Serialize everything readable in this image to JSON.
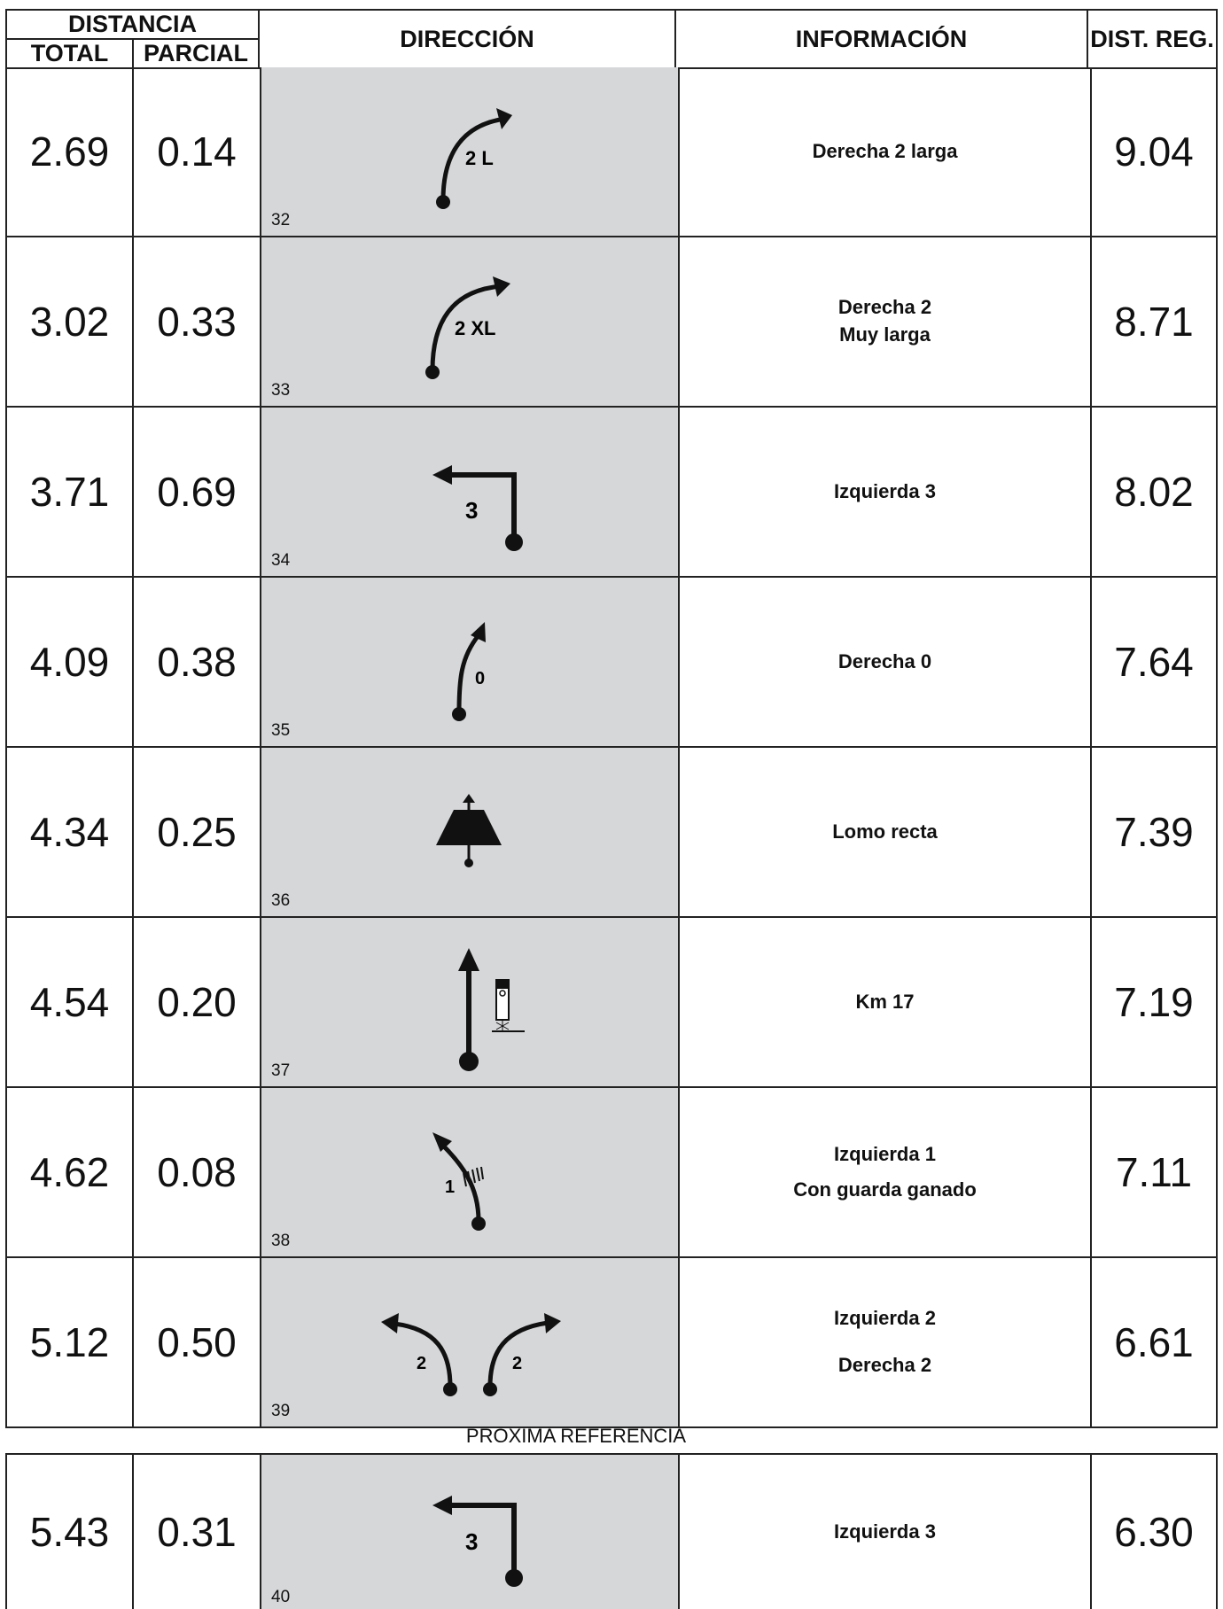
{
  "header": {
    "distancia": "DISTANCIA",
    "total": "TOTAL",
    "parcial": "PARCIAL",
    "direccion": "DIRECCIÓN",
    "informacion": "INFORMACIÓN",
    "dist_reg": "DIST. REG."
  },
  "rows": [
    {
      "total": "2.69",
      "parcial": "0.14",
      "num": "32",
      "info1": "Derecha 2 larga",
      "info2": "",
      "reg": "9.04",
      "label": "2 L"
    },
    {
      "total": "3.02",
      "parcial": "0.33",
      "num": "33",
      "info1": "Derecha 2",
      "info2": "Muy larga",
      "reg": "8.71",
      "label": "2 XL"
    },
    {
      "total": "3.71",
      "parcial": "0.69",
      "num": "34",
      "info1": "Izquierda 3",
      "info2": "",
      "reg": "8.02",
      "label": "3"
    },
    {
      "total": "4.09",
      "parcial": "0.38",
      "num": "35",
      "info1": "Derecha 0",
      "info2": "",
      "reg": "7.64",
      "label": "0"
    },
    {
      "total": "4.34",
      "parcial": "0.25",
      "num": "36",
      "info1": "Lomo recta",
      "info2": "",
      "reg": "7.39",
      "label": ""
    },
    {
      "total": "4.54",
      "parcial": "0.20",
      "num": "37",
      "info1": "Km 17",
      "info2": "",
      "reg": "7.19",
      "label": ""
    },
    {
      "total": "4.62",
      "parcial": "0.08",
      "num": "38",
      "info1": "Izquierda 1",
      "info2": "Con guarda ganado",
      "reg": "7.11",
      "label": "1"
    },
    {
      "total": "5.12",
      "parcial": "0.50",
      "num": "39",
      "info1": "Izquierda 2",
      "info2": "Derecha 2",
      "reg": "6.61",
      "label": "2",
      "label_b": "2"
    }
  ],
  "next_reference": "PROXIMA REFERENCIA",
  "last_row": {
    "total": "5.43",
    "parcial": "0.31",
    "num": "40",
    "info1": "Izquierda 3",
    "reg": "6.30",
    "label": "3"
  }
}
